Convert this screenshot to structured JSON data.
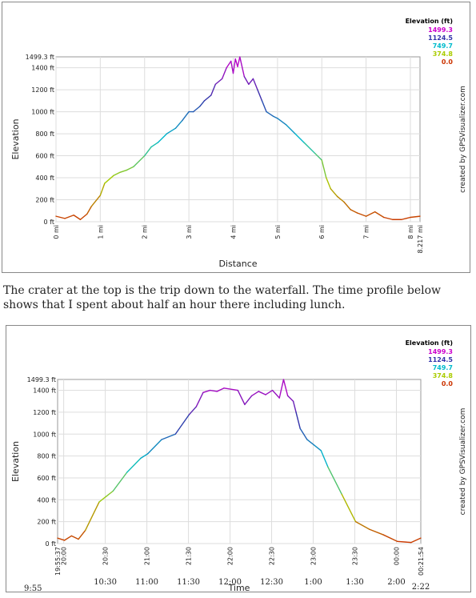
{
  "caption": "The crater at the top is the trip down to the waterfall. The time profile below shows that I spent about half an hour there including lunch.",
  "legend": {
    "title": "Elevation (ft)",
    "entries": [
      {
        "label": "1499.3",
        "color": "#cc00cc"
      },
      {
        "label": "1124.5",
        "color": "#3333aa"
      },
      {
        "label": "749.7",
        "color": "#00bbcc"
      },
      {
        "label": "374.8",
        "color": "#aacc00"
      },
      {
        "label": "0.0",
        "color": "#cc3300"
      }
    ]
  },
  "credit": "created by GPSVisualizer.com",
  "chart_data": [
    {
      "type": "line",
      "xlabel": "Distance",
      "ylabel": "Elevation",
      "xlim": [
        0,
        8.217
      ],
      "ylim": [
        0,
        1499.3
      ],
      "y_max_label": "1499.3 ft",
      "x_end_label": "8.217 mi",
      "y_ticks": [
        "0 ft",
        "200 ft",
        "400 ft",
        "600 ft",
        "800 ft",
        "1000 ft",
        "1200 ft",
        "1400 ft"
      ],
      "x_ticks": [
        "0 mi",
        "1 mi",
        "2 mi",
        "3 mi",
        "4 mi",
        "5 mi",
        "6 mi",
        "7 mi",
        "8 mi"
      ],
      "grid": true,
      "series": [
        {
          "x": [
            0,
            0.2,
            0.4,
            0.55,
            0.7,
            0.8,
            1.0,
            1.1,
            1.3,
            1.45,
            1.6,
            1.75,
            2.0,
            2.15,
            2.3,
            2.5,
            2.7,
            2.85,
            3.0,
            3.1,
            3.25,
            3.35,
            3.5,
            3.6,
            3.75,
            3.85,
            3.95,
            4.0,
            4.05,
            4.1,
            4.15,
            4.25,
            4.35,
            4.45,
            4.55,
            4.65,
            4.75,
            4.9,
            5.0,
            5.2,
            5.4,
            5.6,
            5.85,
            6.0,
            6.1,
            6.2,
            6.35,
            6.5,
            6.65,
            6.8,
            7.0,
            7.2,
            7.4,
            7.6,
            7.8,
            8.0,
            8.217
          ],
          "y": [
            50,
            30,
            60,
            20,
            70,
            140,
            240,
            350,
            420,
            450,
            470,
            500,
            600,
            680,
            720,
            800,
            850,
            920,
            1000,
            1000,
            1050,
            1100,
            1150,
            1250,
            1300,
            1400,
            1460,
            1350,
            1480,
            1410,
            1499,
            1320,
            1250,
            1300,
            1200,
            1100,
            1000,
            960,
            940,
            880,
            800,
            720,
            620,
            560,
            400,
            300,
            230,
            180,
            110,
            80,
            50,
            90,
            40,
            20,
            20,
            40,
            50
          ]
        }
      ]
    },
    {
      "type": "line",
      "xlabel": "Time",
      "ylabel": "Elevation",
      "ylim": [
        0,
        1499.3
      ],
      "y_max_label": "1499.3 ft",
      "x_start_label": "19:55:37",
      "x_end_label": "00:21:54",
      "y_ticks": [
        "0 ft",
        "200 ft",
        "400 ft",
        "600 ft",
        "800 ft",
        "1000 ft",
        "1200 ft",
        "1400 ft"
      ],
      "x_ticks": [
        "20:00",
        "20:30",
        "21:00",
        "21:30",
        "22:00",
        "22:30",
        "23:00",
        "23:30",
        "00:00"
      ],
      "secondary_ticks": [
        "10:30",
        "11:00",
        "11:30",
        "12:00",
        "12:30",
        "1:00",
        "1:30",
        "2:00"
      ],
      "secondary_start": "9:55",
      "secondary_end": "2:22",
      "grid": true,
      "series": [
        {
          "x": [
            0,
            5,
            10,
            15,
            20,
            30,
            35,
            40,
            50,
            60,
            65,
            75,
            85,
            95,
            100,
            105,
            110,
            115,
            120,
            130,
            135,
            140,
            145,
            150,
            155,
            160,
            163,
            166,
            170,
            172,
            175,
            180,
            185,
            190,
            195,
            205,
            215,
            225,
            235,
            245,
            255,
            262
          ],
          "y": [
            50,
            30,
            70,
            40,
            120,
            380,
            430,
            480,
            650,
            780,
            820,
            950,
            1000,
            1180,
            1250,
            1380,
            1400,
            1390,
            1420,
            1400,
            1270,
            1350,
            1390,
            1360,
            1400,
            1330,
            1499,
            1350,
            1300,
            1200,
            1050,
            950,
            900,
            850,
            700,
            450,
            200,
            130,
            80,
            20,
            10,
            50
          ]
        }
      ]
    }
  ]
}
